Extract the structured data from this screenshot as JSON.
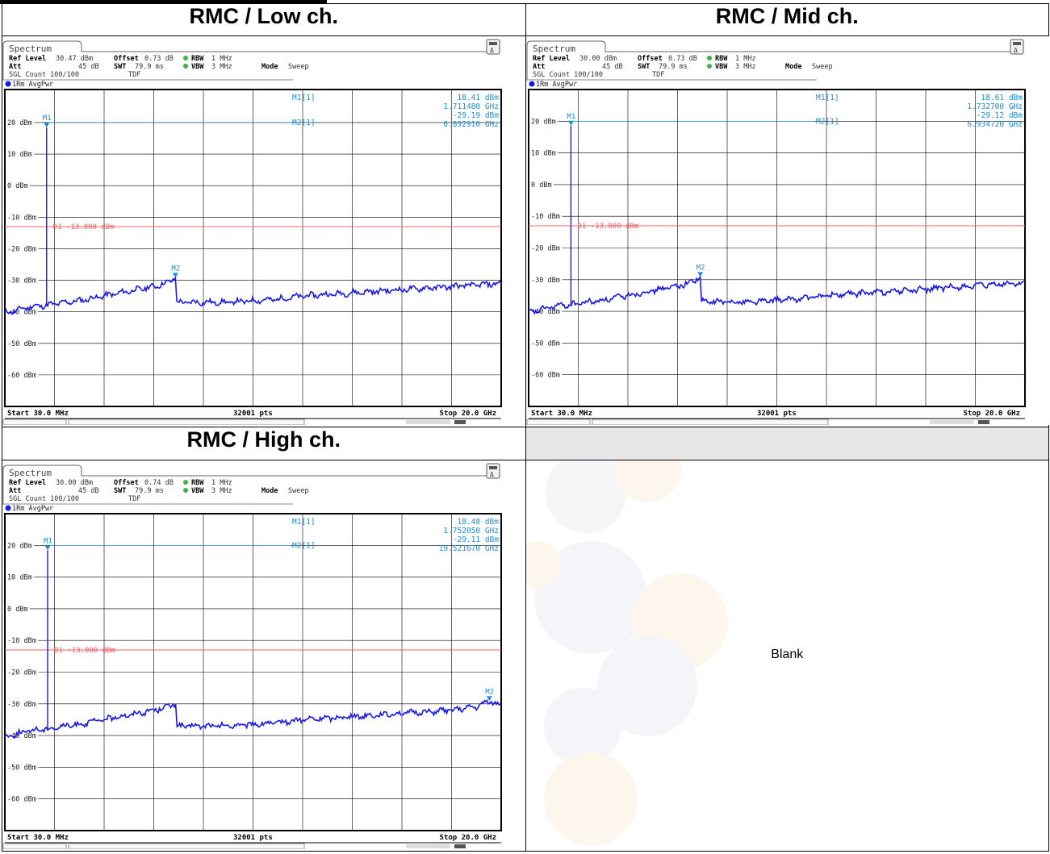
{
  "headers": {
    "low": "RMC / Low ch.",
    "mid": "RMC / Mid ch.",
    "high": "RMC / High ch.",
    "empty": ""
  },
  "blank_label": "Blank",
  "colors": {
    "trace": "#1a1ae6",
    "limit_line": "#f06060",
    "marker": "#1a8fd0",
    "grid": "#000000"
  },
  "chart_data": [
    {
      "type": "line",
      "panel_title": "Spectrum",
      "settings": {
        "ref_level_label": "Ref Level",
        "ref_level": "30.47 dBm",
        "offset_label": "Offset",
        "offset": "0.73 dB",
        "rbw_label": "RBW",
        "rbw": "1 MHz",
        "att_label": "Att",
        "att": "45 dB",
        "swt_label": "SWT",
        "swt": "79.9 ms",
        "vbw_label": "VBW",
        "vbw": "3 MHz",
        "mode_label": "Mode",
        "mode": "Sweep",
        "sgl_count": "SGL Count 100/100",
        "tdf": "TDF",
        "trace_label": "1Rm AvgPwr"
      },
      "y_ticks": [
        "20 dBm",
        "10 dBm",
        "0 dBm",
        "-10 dBm",
        "-20 dBm",
        "-30 dBm",
        "-40 dBm",
        "-50 dBm",
        "-60 dBm"
      ],
      "y_tick_values": [
        20,
        10,
        0,
        -10,
        -20,
        -30,
        -40,
        -50,
        -60
      ],
      "ylim": [
        -70,
        30.47
      ],
      "xlim_ghz": [
        0.03,
        20.0
      ],
      "start_label": "Start 30.0 MHz",
      "points_label": "32001 pts",
      "stop_label": "Stop 20.0 GHz",
      "limit_line": {
        "label": "D1 -13.000 dBm",
        "value": -13.0
      },
      "markers": [
        {
          "name": "M1",
          "readout_label": "M1[1]",
          "level": "18.41 dBm",
          "freq": "1.711480 GHz",
          "x_ghz": 1.71148,
          "y_dbm": 18.41
        },
        {
          "name": "M2",
          "readout_label": "M2[1]",
          "level": "-29.19 dBm",
          "freq": "6.892910 GHz",
          "x_ghz": 6.89291,
          "y_dbm": -29.19
        }
      ],
      "trace": {
        "x_ghz": [
          0.03,
          0.5,
          1.0,
          1.5,
          1.7,
          2.0,
          3.0,
          4.0,
          5.0,
          6.0,
          6.5,
          6.89,
          6.95,
          8.0,
          9.0,
          10.0,
          11.0,
          12.0,
          13.0,
          14.0,
          15.0,
          16.0,
          17.0,
          18.0,
          19.0,
          20.0
        ],
        "y_dbm": [
          -40.5,
          -39.5,
          -38.5,
          -38.0,
          -38.0,
          -37.5,
          -36.5,
          -35.0,
          -33.5,
          -32.0,
          -31.0,
          -29.2,
          -37.0,
          -37.0,
          -37.0,
          -36.5,
          -36.0,
          -35.0,
          -34.5,
          -34.0,
          -33.5,
          -33.0,
          -32.5,
          -32.0,
          -31.5,
          -31.0
        ]
      }
    },
    {
      "type": "line",
      "panel_title": "Spectrum",
      "settings": {
        "ref_level_label": "Ref Level",
        "ref_level": "30.00 dBm",
        "offset_label": "Offset",
        "offset": "0.73 dB",
        "rbw_label": "RBW",
        "rbw": "1 MHz",
        "att_label": "Att",
        "att": "45 dB",
        "swt_label": "SWT",
        "swt": "79.9 ms",
        "vbw_label": "VBW",
        "vbw": "3 MHz",
        "mode_label": "Mode",
        "mode": "Sweep",
        "sgl_count": "SGL Count 100/100",
        "tdf": "TDF",
        "trace_label": "1Rm AvgPwr"
      },
      "y_ticks": [
        "20 dBm",
        "10 dBm",
        "0 dBm",
        "-10 dBm",
        "-20 dBm",
        "-30 dBm",
        "-40 dBm",
        "-50 dBm",
        "-60 dBm"
      ],
      "y_tick_values": [
        20,
        10,
        0,
        -10,
        -20,
        -30,
        -40,
        -50,
        -60
      ],
      "ylim": [
        -70,
        30.0
      ],
      "xlim_ghz": [
        0.03,
        20.0
      ],
      "start_label": "Start 30.0 MHz",
      "points_label": "32001 pts",
      "stop_label": "Stop 20.0 GHz",
      "limit_line": {
        "label": "D1 -13.000 dBm",
        "value": -13.0
      },
      "markers": [
        {
          "name": "M1",
          "readout_label": "M1[1]",
          "level": "18.61 dBm",
          "freq": "1.732700 GHz",
          "x_ghz": 1.7327,
          "y_dbm": 18.61
        },
        {
          "name": "M2",
          "readout_label": "M2[1]",
          "level": "-29.12 dBm",
          "freq": "6.934720 GHz",
          "x_ghz": 6.93472,
          "y_dbm": -29.12
        }
      ],
      "trace": {
        "x_ghz": [
          0.03,
          0.5,
          1.0,
          1.5,
          1.7,
          2.0,
          3.0,
          4.0,
          5.0,
          6.0,
          6.5,
          6.93,
          6.99,
          8.0,
          9.0,
          10.0,
          11.0,
          12.0,
          13.0,
          14.0,
          15.0,
          16.0,
          17.0,
          18.0,
          19.0,
          20.0
        ],
        "y_dbm": [
          -40.5,
          -39.5,
          -38.5,
          -38.0,
          -38.0,
          -37.5,
          -36.5,
          -35.0,
          -33.5,
          -32.0,
          -31.0,
          -29.1,
          -37.0,
          -37.0,
          -37.0,
          -36.5,
          -36.0,
          -35.0,
          -34.5,
          -34.0,
          -33.5,
          -33.0,
          -32.5,
          -32.0,
          -31.5,
          -31.0
        ]
      }
    },
    {
      "type": "line",
      "panel_title": "Spectrum",
      "settings": {
        "ref_level_label": "Ref Level",
        "ref_level": "30.00 dBm",
        "offset_label": "Offset",
        "offset": "0.74 dB",
        "rbw_label": "RBW",
        "rbw": "1 MHz",
        "att_label": "Att",
        "att": "45 dB",
        "swt_label": "SWT",
        "swt": "79.9 ms",
        "vbw_label": "VBW",
        "vbw": "3 MHz",
        "mode_label": "Mode",
        "mode": "Sweep",
        "sgl_count": "SGL Count 100/100",
        "tdf": "TDF",
        "trace_label": "1Rm AvgPwr"
      },
      "y_ticks": [
        "20 dBm",
        "10 dBm",
        "0 dBm",
        "-10 dBm",
        "-20 dBm",
        "-30 dBm",
        "-40 dBm",
        "-50 dBm",
        "-60 dBm"
      ],
      "y_tick_values": [
        20,
        10,
        0,
        -10,
        -20,
        -30,
        -40,
        -50,
        -60
      ],
      "ylim": [
        -70,
        30.0
      ],
      "xlim_ghz": [
        0.03,
        20.0
      ],
      "start_label": "Start 30.0 MHz",
      "points_label": "32001 pts",
      "stop_label": "Stop 20.0 GHz",
      "limit_line": {
        "label": "D1 -13.000 dBm",
        "value": -13.0
      },
      "markers": [
        {
          "name": "M1",
          "readout_label": "M1[1]",
          "level": "18.48 dBm",
          "freq": "1.752050 GHz",
          "x_ghz": 1.75205,
          "y_dbm": 18.48
        },
        {
          "name": "M2",
          "readout_label": "M2[1]",
          "level": "-29.11 dBm",
          "freq": "19.521670 GHz",
          "x_ghz": 19.52167,
          "y_dbm": -29.11
        }
      ],
      "trace": {
        "x_ghz": [
          0.03,
          0.5,
          1.0,
          1.5,
          1.75,
          2.0,
          3.0,
          4.0,
          5.0,
          6.0,
          6.5,
          6.9,
          6.96,
          8.0,
          9.0,
          10.0,
          11.0,
          12.0,
          13.0,
          14.0,
          15.0,
          16.0,
          17.0,
          18.0,
          19.0,
          19.52,
          20.0
        ],
        "y_dbm": [
          -40.5,
          -39.5,
          -38.5,
          -38.0,
          -38.0,
          -37.5,
          -36.5,
          -35.0,
          -33.5,
          -32.0,
          -31.0,
          -30.0,
          -37.0,
          -37.0,
          -37.0,
          -36.5,
          -36.0,
          -35.0,
          -34.5,
          -34.0,
          -33.5,
          -33.0,
          -32.5,
          -32.0,
          -31.0,
          -29.1,
          -30.5
        ]
      }
    }
  ]
}
